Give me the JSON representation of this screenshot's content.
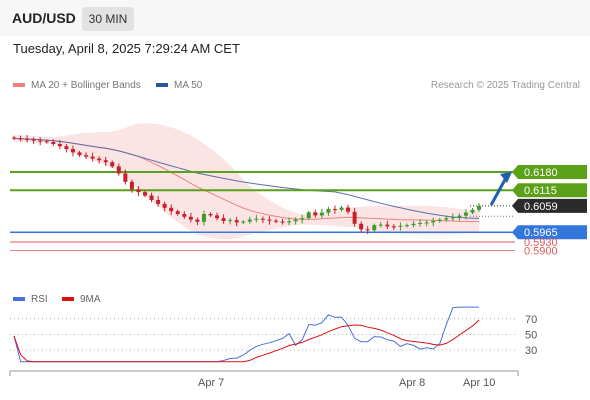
{
  "header": {
    "symbol": "AUD/USD",
    "interval_label": "30 MIN",
    "datetime": "Tuesday, April 8, 2025 7:29:24 AM CET"
  },
  "legend": {
    "bollinger_label": "MA 20 + Bollinger Bands",
    "bollinger_color": "#f08080",
    "ma50_label": "MA 50",
    "ma50_color": "#2a5599",
    "research_text": "Research © 2025 Trading Central"
  },
  "levels": {
    "target2": "0.6180",
    "target1": "0.6115",
    "current": "0.6059",
    "pivot": "0.5965",
    "support1": "0.5930",
    "support2": "0.5900"
  },
  "colors": {
    "resistance": "#5aa018",
    "pivot": "#3377dd",
    "support": "#e05a5a",
    "current_bg": "#2b2b2b",
    "up_candle": "#3e9a2a",
    "down_candle": "#c8202a",
    "arrow": "#1f5fae",
    "rsi": "#4a6fdc",
    "rsi_ma": "#e01010"
  },
  "rsi": {
    "rsi_label": "RSI",
    "ma_label": "9MA",
    "levels": [
      "70",
      "50",
      "30"
    ]
  },
  "xaxis": {
    "labels": [
      "Apr 7",
      "Apr 8",
      "Apr 10"
    ]
  },
  "chart_data": {
    "type": "candlestick",
    "pair": "AUD/USD",
    "timeframe": "30 MIN",
    "price_levels": [
      0.618,
      0.6115,
      0.6059,
      0.5965,
      0.593,
      0.59
    ],
    "closes": [
      0.63,
      0.6298,
      0.6296,
      0.6292,
      0.629,
      0.6287,
      0.628,
      0.6272,
      0.6262,
      0.625,
      0.624,
      0.6235,
      0.6228,
      0.6222,
      0.6215,
      0.62,
      0.6175,
      0.6145,
      0.6118,
      0.6108,
      0.6096,
      0.608,
      0.6066,
      0.6052,
      0.604,
      0.603,
      0.602,
      0.601,
      0.6002,
      0.603,
      0.6025,
      0.6015,
      0.6005,
      0.6008,
      0.6,
      0.6003,
      0.601,
      0.6013,
      0.601,
      0.6006,
      0.6003,
      0.6,
      0.6004,
      0.601,
      0.6015,
      0.6036,
      0.6025,
      0.6035,
      0.6048,
      0.6045,
      0.6053,
      0.6038,
      0.5995,
      0.5975,
      0.5972,
      0.599,
      0.5992,
      0.5986,
      0.5985,
      0.5988,
      0.599,
      0.5995,
      0.5998,
      0.6,
      0.6005,
      0.601,
      0.6015,
      0.6018,
      0.6024,
      0.6035,
      0.6045,
      0.6059
    ],
    "rsi_levels": [
      70,
      50,
      30
    ],
    "x_labels": [
      "Apr 7",
      "Apr 8",
      "Apr 10"
    ]
  }
}
